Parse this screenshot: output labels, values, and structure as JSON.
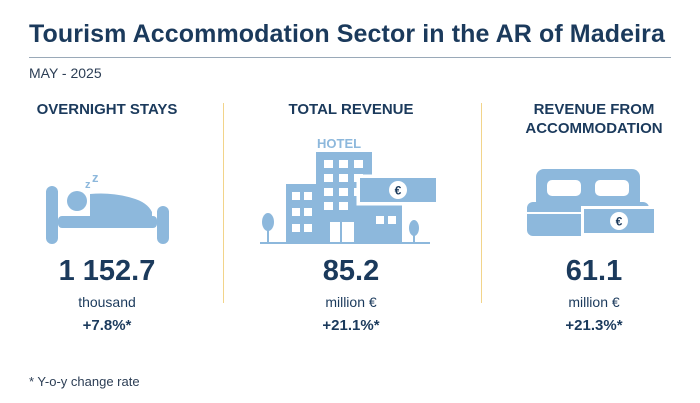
{
  "header": {
    "title": "Tourism Accommodation Sector in the AR of Madeira",
    "period": "MAY - 2025"
  },
  "indicators": [
    {
      "heading": "OVERNIGHT STAYS",
      "value": "1 152.7",
      "unit": "thousand",
      "change": "+7.8%*",
      "icon": "sleeping-person-bed-icon"
    },
    {
      "heading": "TOTAL REVENUE",
      "value": "85.2",
      "unit": "million €",
      "change": "+21.1%*",
      "icon": "hotel-building-icon",
      "icon_label": "HOTEL",
      "currency_symbol": "€"
    },
    {
      "heading": "REVENUE FROM ACCOMMODATION",
      "value": "61.1",
      "unit": "million €",
      "change": "+21.3%*",
      "icon": "double-bed-icon",
      "currency_symbol": "€"
    }
  ],
  "footnote": "* Y-o-y change rate",
  "colors": {
    "text": "#1b3a5c",
    "icon": "#8db8dc",
    "divider": "#f2d48a",
    "rule": "#9aa9b8"
  }
}
